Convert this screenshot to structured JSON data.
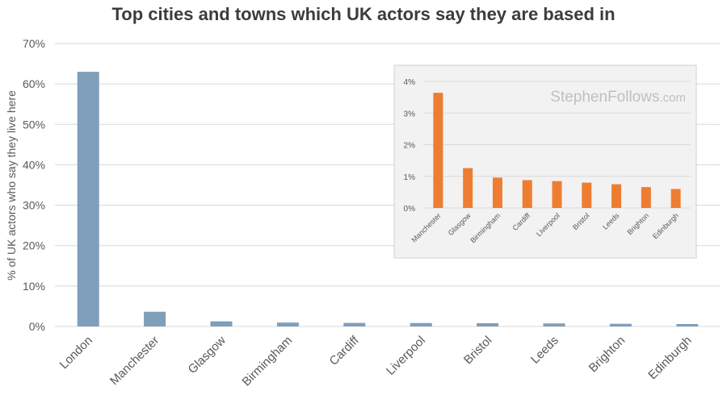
{
  "chart_data": [
    {
      "type": "bar",
      "title": "Top cities and towns which UK actors say they are based in",
      "ylabel": "% of UK actors who say they live here",
      "xlabel": "",
      "categories": [
        "London",
        "Manchester",
        "Glasgow",
        "Birmingham",
        "Cardiff",
        "Liverpool",
        "Bristol",
        "Leeds",
        "Brighton",
        "Edinburgh"
      ],
      "values": [
        63.0,
        3.64,
        1.26,
        0.96,
        0.88,
        0.85,
        0.8,
        0.75,
        0.66,
        0.6
      ],
      "ylim": [
        0,
        70
      ],
      "yticks": [
        "0%",
        "10%",
        "20%",
        "30%",
        "40%",
        "50%",
        "60%",
        "70%"
      ],
      "bar_color": "#7f9fba",
      "grid": true
    },
    {
      "type": "bar",
      "title": "",
      "categories": [
        "Manchester",
        "Glasgow",
        "Birmingham",
        "Cardiff",
        "Liverpool",
        "Bristol",
        "Leeds",
        "Brighton",
        "Edinburgh"
      ],
      "values": [
        3.64,
        1.26,
        0.96,
        0.88,
        0.85,
        0.8,
        0.75,
        0.66,
        0.6
      ],
      "ylim": [
        0,
        4
      ],
      "yticks": [
        "0%",
        "1%",
        "2%",
        "3%",
        "4%"
      ],
      "bar_color": "#ee7d31",
      "grid": true,
      "watermark": {
        "main": "StephenFollows",
        "suffix": ".com"
      }
    }
  ]
}
